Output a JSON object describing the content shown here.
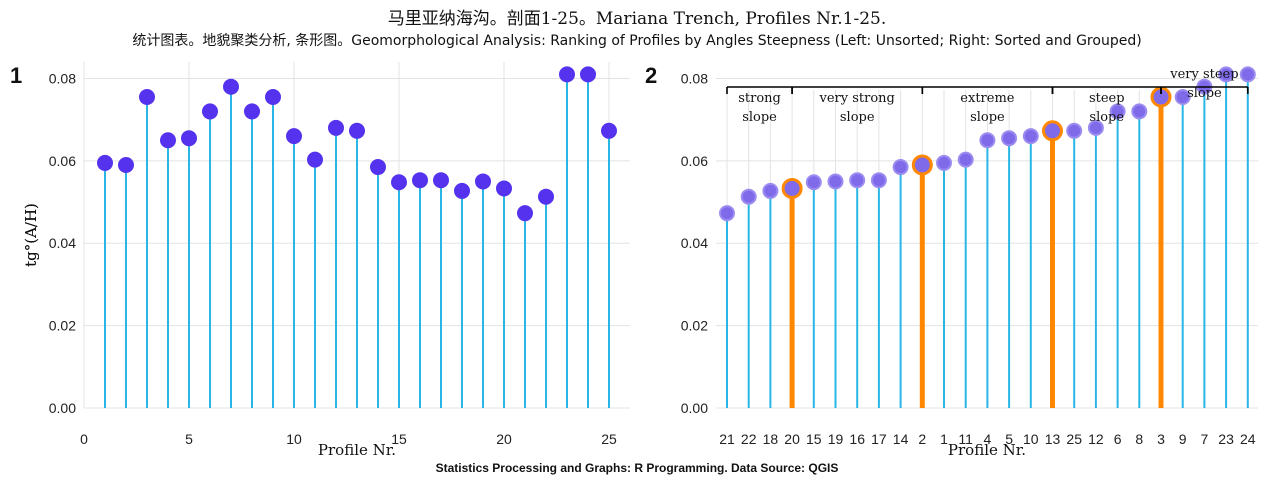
{
  "header": {
    "title": "马里亚纳海沟。剖面1-25。Mariana Trench, Profiles Nr.1-25.",
    "subtitle": "统计图表。地貌聚类分析, 条形图。Geomorphological Analysis: Ranking of Profiles by Angles Steepness (Left: Unsorted; Right: Sorted and Grouped)"
  },
  "footer": {
    "caption": "Statistics Processing and Graphs: R Programming. Data Source: QGIS"
  },
  "colors": {
    "stem": "#29b6e6",
    "point": "#5533ee",
    "point_sorted": "#7f6aea",
    "highlight": "#ff8800",
    "grid": "#e3e3e3"
  },
  "chart_data": [
    {
      "type": "lollipop",
      "panel_label": "1",
      "xlabel": "Profile Nr.",
      "ylabel": "tg°(A/H)",
      "xlim": [
        0,
        26
      ],
      "ylim": [
        0,
        0.084
      ],
      "x_ticks": [
        "0",
        "5",
        "10",
        "15",
        "20",
        "25"
      ],
      "y_ticks": [
        "0.00",
        "0.02",
        "0.04",
        "0.06",
        "0.08"
      ],
      "x": [
        1,
        2,
        3,
        4,
        5,
        6,
        7,
        8,
        9,
        10,
        11,
        12,
        13,
        14,
        15,
        16,
        17,
        18,
        19,
        20,
        21,
        22,
        23,
        24,
        25
      ],
      "values": [
        0.0595,
        0.059,
        0.0755,
        0.065,
        0.0655,
        0.072,
        0.078,
        0.072,
        0.0755,
        0.066,
        0.0603,
        0.068,
        0.0673,
        0.0585,
        0.0548,
        0.0553,
        0.0553,
        0.0527,
        0.055,
        0.0533,
        0.0473,
        0.0513,
        0.081,
        0.081,
        0.0673
      ]
    },
    {
      "type": "lollipop",
      "panel_label": "2",
      "xlabel": "Profile Nr.",
      "ylabel": "tg°(A/H)",
      "ylim": [
        0,
        0.084
      ],
      "y_ticks": [
        "0.00",
        "0.02",
        "0.04",
        "0.06",
        "0.08"
      ],
      "categories": [
        "21",
        "22",
        "18",
        "20",
        "15",
        "19",
        "16",
        "17",
        "14",
        "2",
        "1",
        "11",
        "4",
        "5",
        "10",
        "13",
        "25",
        "12",
        "6",
        "8",
        "3",
        "9",
        "7",
        "23",
        "24"
      ],
      "values": [
        0.0473,
        0.0513,
        0.0527,
        0.0533,
        0.0548,
        0.055,
        0.0553,
        0.0553,
        0.0585,
        0.059,
        0.0595,
        0.0603,
        0.065,
        0.0655,
        0.066,
        0.0673,
        0.0673,
        0.068,
        0.072,
        0.072,
        0.0755,
        0.0755,
        0.078,
        0.081,
        0.081
      ],
      "highlighted_categories": [
        "20",
        "2",
        "13",
        "3"
      ],
      "groups": [
        {
          "label_line1": "strong",
          "label_line2": "slope",
          "start_index": 0,
          "end_index": 3
        },
        {
          "label_line1": "very strong",
          "label_line2": "slope",
          "start_index": 3,
          "end_index": 9
        },
        {
          "label_line1": "extreme",
          "label_line2": "slope",
          "start_index": 9,
          "end_index": 15
        },
        {
          "label_line1": "steep",
          "label_line2": "slope",
          "start_index": 15,
          "end_index": 20
        },
        {
          "label_line1": "very steep",
          "label_line2": "slope",
          "start_index": 20,
          "end_index": 24
        }
      ]
    }
  ]
}
